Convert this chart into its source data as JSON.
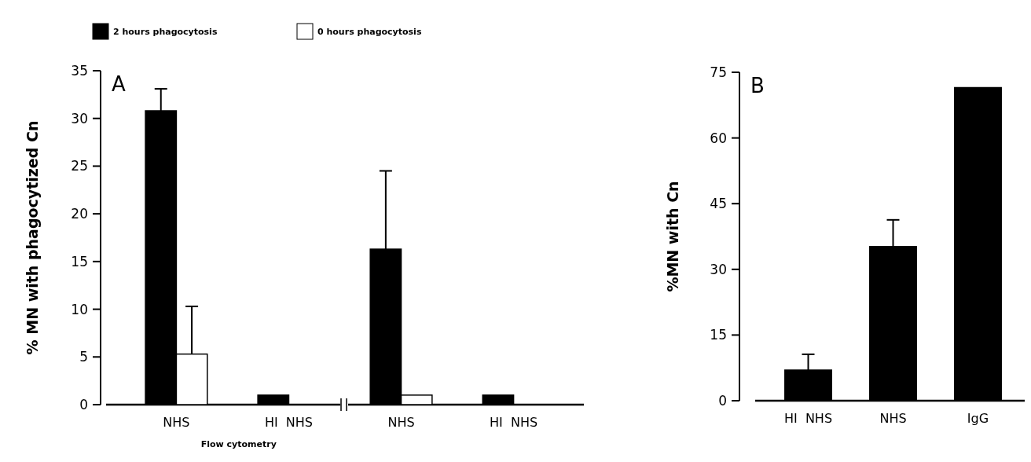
{
  "chart_data": [
    {
      "type": "bar",
      "ylabel": "% MN with phagocytized Cn",
      "categories": [
        "NHS",
        "HI  NHS",
        "NHS",
        "HI  NHS"
      ],
      "ylim": [
        0,
        35
      ],
      "yticks": [
        0,
        5,
        10,
        15,
        20,
        25,
        30,
        35
      ],
      "legend": "top",
      "grid": false,
      "series": [
        {
          "name": "2 hours phagocytosis",
          "color": "#000000",
          "values": [
            30.8,
            1,
            16.3,
            1
          ],
          "errors": [
            [
              30.8,
              33.1
            ],
            null,
            [
              16.3,
              24.5
            ],
            null
          ]
        },
        {
          "name": "0 hours phagocytosis",
          "color": "#ffffff",
          "values": [
            5.3,
            null,
            1,
            null
          ],
          "errors": [
            [
              5.3,
              10.3
            ],
            null,
            null,
            null
          ]
        }
      ],
      "annotations": [
        "A",
        "Flow cytometry"
      ]
    },
    {
      "type": "bar",
      "ylabel": "%MN with Cn",
      "categories": [
        "HI  NHS",
        "NHS",
        "IgG"
      ],
      "ylim": [
        0,
        75
      ],
      "yticks": [
        0,
        15,
        30,
        45,
        60,
        75
      ],
      "grid": false,
      "series": [
        {
          "color": "#000000",
          "values": [
            7,
            35.2,
            71.5
          ],
          "errors": [
            [
              7,
              10.6
            ],
            [
              35.2,
              41.3
            ],
            null
          ]
        }
      ],
      "annotations": [
        "B"
      ]
    }
  ]
}
